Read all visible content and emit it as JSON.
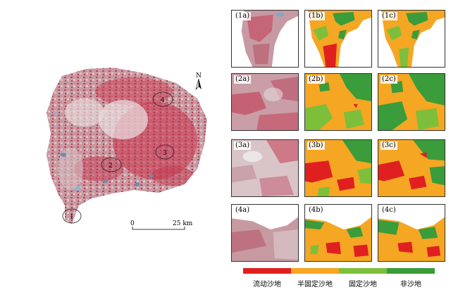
{
  "main_map": {
    "scale_start": "0",
    "scale_end": "25 km",
    "north_label": "N",
    "site_labels": [
      "1",
      "2",
      "3",
      "4"
    ]
  },
  "grid": {
    "rows": [
      [
        "(1a)",
        "(1b)",
        "(1c)"
      ],
      [
        "(2a)",
        "(2b)",
        "(2c)"
      ],
      [
        "(3a)",
        "(3b)",
        "(3c)"
      ],
      [
        "(4a)",
        "(4b)",
        "(4c)"
      ]
    ]
  },
  "legend": [
    {
      "label": "流动沙地",
      "color": "#e02020"
    },
    {
      "label": "半固定沙地",
      "color": "#f5a623"
    },
    {
      "label": "固定沙地",
      "color": "#7dbf3a"
    },
    {
      "label": "非沙地",
      "color": "#3a9c3a"
    }
  ],
  "colors": {
    "image_base": "#c8a2a6",
    "image_red": "#c4304a",
    "image_light": "#e7dede",
    "water": "#7fa8c9"
  }
}
